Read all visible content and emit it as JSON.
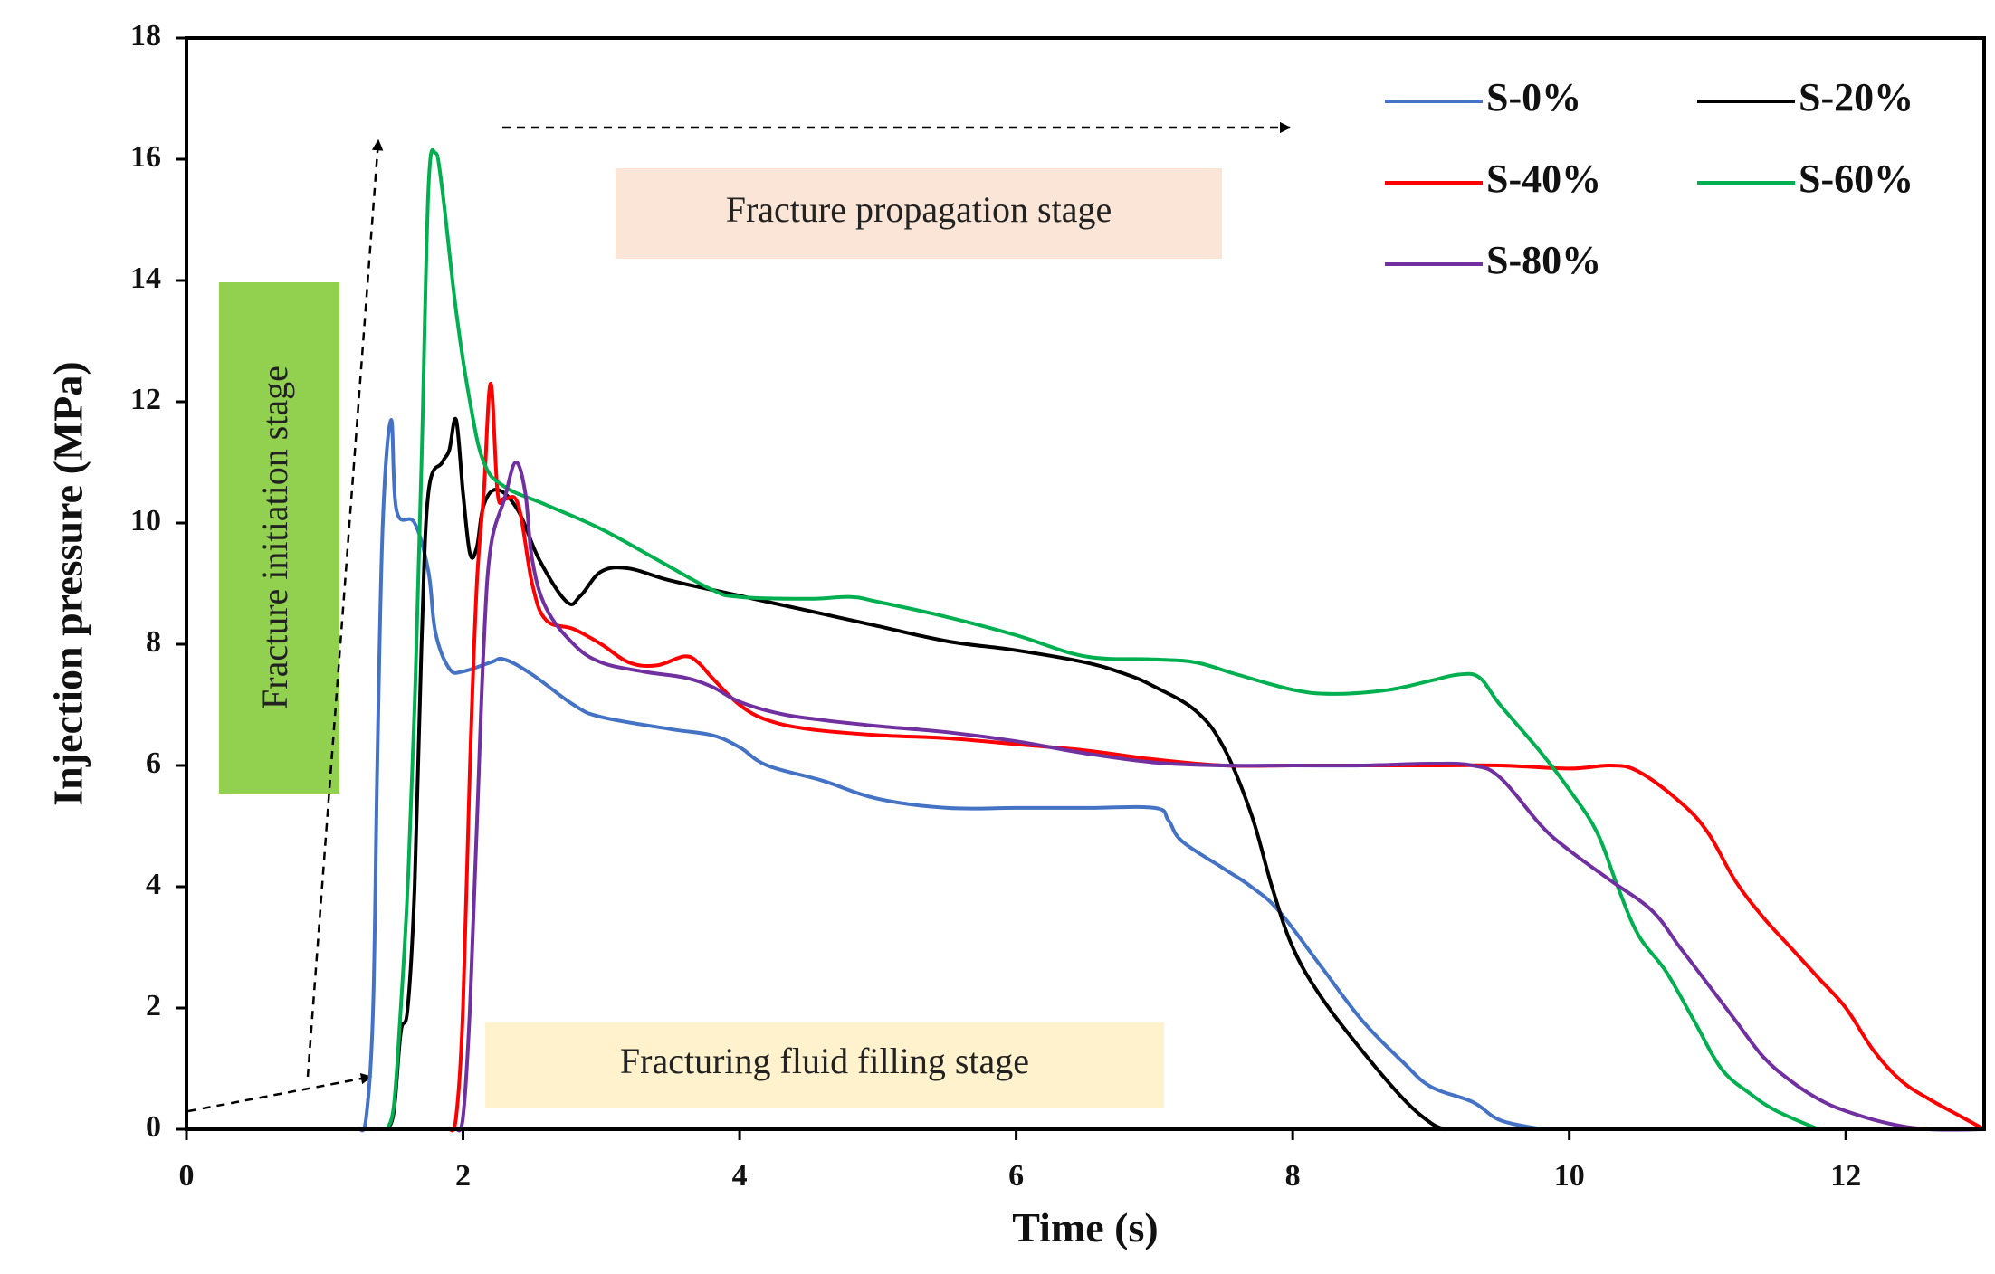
{
  "chart_data": {
    "type": "line",
    "xlabel": "Time (s)",
    "ylabel": "Injection pressure (MPa)",
    "xlim": [
      0,
      13
    ],
    "ylim": [
      0,
      18
    ],
    "xticks": [
      0,
      2,
      4,
      6,
      8,
      10,
      12
    ],
    "yticks": [
      0,
      2,
      4,
      6,
      8,
      10,
      12,
      14,
      16,
      18
    ],
    "grid": false,
    "legend_position": "top-right",
    "series": [
      {
        "name": "S-0%",
        "color": "#4472C4",
        "points": [
          [
            1.25,
            0
          ],
          [
            1.3,
            0.2
          ],
          [
            1.35,
            2
          ],
          [
            1.38,
            6
          ],
          [
            1.42,
            10
          ],
          [
            1.48,
            11.7
          ],
          [
            1.52,
            10.2
          ],
          [
            1.65,
            10
          ],
          [
            1.75,
            9.2
          ],
          [
            1.8,
            8.2
          ],
          [
            1.9,
            7.6
          ],
          [
            2.0,
            7.55
          ],
          [
            2.2,
            7.7
          ],
          [
            2.3,
            7.75
          ],
          [
            2.5,
            7.5
          ],
          [
            2.8,
            7.0
          ],
          [
            3.0,
            6.8
          ],
          [
            3.5,
            6.6
          ],
          [
            3.8,
            6.5
          ],
          [
            4.0,
            6.3
          ],
          [
            4.2,
            6.0
          ],
          [
            4.6,
            5.75
          ],
          [
            5.0,
            5.45
          ],
          [
            5.5,
            5.3
          ],
          [
            6.0,
            5.3
          ],
          [
            6.5,
            5.3
          ],
          [
            7.0,
            5.3
          ],
          [
            7.1,
            5.1
          ],
          [
            7.2,
            4.75
          ],
          [
            7.5,
            4.3
          ],
          [
            7.7,
            4.0
          ],
          [
            7.9,
            3.6
          ],
          [
            8.2,
            2.7
          ],
          [
            8.5,
            1.8
          ],
          [
            8.8,
            1.1
          ],
          [
            9.0,
            0.7
          ],
          [
            9.3,
            0.45
          ],
          [
            9.5,
            0.15
          ],
          [
            9.8,
            0
          ]
        ]
      },
      {
        "name": "S-20%",
        "color": "#000000",
        "points": [
          [
            1.45,
            0
          ],
          [
            1.5,
            0.3
          ],
          [
            1.55,
            1.6
          ],
          [
            1.6,
            2.0
          ],
          [
            1.65,
            4
          ],
          [
            1.7,
            8
          ],
          [
            1.75,
            10.5
          ],
          [
            1.85,
            11.0
          ],
          [
            1.9,
            11.2
          ],
          [
            1.95,
            11.7
          ],
          [
            2.0,
            10.5
          ],
          [
            2.05,
            9.5
          ],
          [
            2.1,
            9.6
          ],
          [
            2.15,
            10.3
          ],
          [
            2.25,
            10.55
          ],
          [
            2.4,
            10.2
          ],
          [
            2.55,
            9.4
          ],
          [
            2.75,
            8.7
          ],
          [
            2.85,
            8.8
          ],
          [
            3.0,
            9.2
          ],
          [
            3.2,
            9.25
          ],
          [
            3.5,
            9.05
          ],
          [
            4.0,
            8.8
          ],
          [
            4.5,
            8.55
          ],
          [
            5.0,
            8.3
          ],
          [
            5.5,
            8.05
          ],
          [
            6.0,
            7.9
          ],
          [
            6.5,
            7.7
          ],
          [
            6.8,
            7.5
          ],
          [
            7.0,
            7.3
          ],
          [
            7.3,
            6.9
          ],
          [
            7.5,
            6.3
          ],
          [
            7.7,
            5.2
          ],
          [
            7.85,
            4.0
          ],
          [
            8.0,
            3.0
          ],
          [
            8.2,
            2.2
          ],
          [
            8.5,
            1.3
          ],
          [
            8.8,
            0.5
          ],
          [
            9.0,
            0.1
          ],
          [
            9.1,
            0
          ]
        ]
      },
      {
        "name": "S-40%",
        "color": "#FF0000",
        "points": [
          [
            1.9,
            0
          ],
          [
            1.95,
            0.2
          ],
          [
            2.0,
            2
          ],
          [
            2.05,
            6
          ],
          [
            2.1,
            9
          ],
          [
            2.15,
            10.5
          ],
          [
            2.2,
            12.3
          ],
          [
            2.25,
            10.5
          ],
          [
            2.3,
            10.4
          ],
          [
            2.4,
            10.3
          ],
          [
            2.5,
            9.0
          ],
          [
            2.6,
            8.4
          ],
          [
            2.8,
            8.25
          ],
          [
            3.0,
            8.0
          ],
          [
            3.2,
            7.7
          ],
          [
            3.4,
            7.65
          ],
          [
            3.6,
            7.8
          ],
          [
            3.7,
            7.7
          ],
          [
            3.8,
            7.45
          ],
          [
            4.0,
            7.0
          ],
          [
            4.2,
            6.75
          ],
          [
            4.5,
            6.6
          ],
          [
            5.0,
            6.5
          ],
          [
            5.5,
            6.45
          ],
          [
            6.0,
            6.35
          ],
          [
            6.5,
            6.25
          ],
          [
            7.0,
            6.1
          ],
          [
            7.5,
            6.0
          ],
          [
            8.0,
            6.0
          ],
          [
            8.5,
            6.0
          ],
          [
            9.0,
            6.0
          ],
          [
            9.5,
            6.0
          ],
          [
            10.0,
            5.95
          ],
          [
            10.3,
            6.0
          ],
          [
            10.5,
            5.9
          ],
          [
            10.8,
            5.4
          ],
          [
            11.0,
            4.9
          ],
          [
            11.2,
            4.1
          ],
          [
            11.4,
            3.5
          ],
          [
            11.6,
            3.0
          ],
          [
            11.8,
            2.5
          ],
          [
            12.0,
            2.0
          ],
          [
            12.2,
            1.3
          ],
          [
            12.4,
            0.8
          ],
          [
            12.6,
            0.5
          ],
          [
            12.8,
            0.25
          ],
          [
            13.0,
            0
          ]
        ]
      },
      {
        "name": "S-60%",
        "color": "#00B050",
        "points": [
          [
            1.45,
            0
          ],
          [
            1.5,
            0.4
          ],
          [
            1.55,
            2
          ],
          [
            1.6,
            4
          ],
          [
            1.65,
            7
          ],
          [
            1.7,
            11
          ],
          [
            1.75,
            15.5
          ],
          [
            1.8,
            16.1
          ],
          [
            1.85,
            15.5
          ],
          [
            1.95,
            13.5
          ],
          [
            2.05,
            12.0
          ],
          [
            2.15,
            11.0
          ],
          [
            2.3,
            10.6
          ],
          [
            2.6,
            10.3
          ],
          [
            3.0,
            9.9
          ],
          [
            3.4,
            9.4
          ],
          [
            3.8,
            8.9
          ],
          [
            4.0,
            8.78
          ],
          [
            4.5,
            8.75
          ],
          [
            4.8,
            8.78
          ],
          [
            5.0,
            8.7
          ],
          [
            5.5,
            8.45
          ],
          [
            6.0,
            8.15
          ],
          [
            6.5,
            7.8
          ],
          [
            7.0,
            7.75
          ],
          [
            7.3,
            7.7
          ],
          [
            7.6,
            7.5
          ],
          [
            8.0,
            7.25
          ],
          [
            8.3,
            7.18
          ],
          [
            8.7,
            7.25
          ],
          [
            9.0,
            7.4
          ],
          [
            9.2,
            7.5
          ],
          [
            9.35,
            7.45
          ],
          [
            9.5,
            7.0
          ],
          [
            9.8,
            6.2
          ],
          [
            10.0,
            5.6
          ],
          [
            10.2,
            4.9
          ],
          [
            10.35,
            4.0
          ],
          [
            10.5,
            3.2
          ],
          [
            10.7,
            2.6
          ],
          [
            10.9,
            1.8
          ],
          [
            11.1,
            1.0
          ],
          [
            11.3,
            0.6
          ],
          [
            11.5,
            0.3
          ],
          [
            11.8,
            0
          ]
        ]
      },
      {
        "name": "S-80%",
        "color": "#7030A0",
        "points": [
          [
            1.95,
            0
          ],
          [
            2.0,
            0.2
          ],
          [
            2.05,
            2
          ],
          [
            2.1,
            5
          ],
          [
            2.15,
            8
          ],
          [
            2.2,
            9.6
          ],
          [
            2.3,
            10.4
          ],
          [
            2.38,
            11.0
          ],
          [
            2.45,
            10.5
          ],
          [
            2.5,
            9.4
          ],
          [
            2.6,
            8.6
          ],
          [
            2.8,
            8.0
          ],
          [
            3.0,
            7.7
          ],
          [
            3.3,
            7.55
          ],
          [
            3.6,
            7.45
          ],
          [
            3.8,
            7.3
          ],
          [
            4.0,
            7.05
          ],
          [
            4.3,
            6.85
          ],
          [
            4.6,
            6.75
          ],
          [
            5.0,
            6.65
          ],
          [
            5.5,
            6.55
          ],
          [
            6.0,
            6.4
          ],
          [
            6.5,
            6.2
          ],
          [
            7.0,
            6.05
          ],
          [
            7.5,
            6.0
          ],
          [
            8.0,
            6.0
          ],
          [
            8.5,
            6.0
          ],
          [
            9.0,
            6.03
          ],
          [
            9.3,
            6.0
          ],
          [
            9.5,
            5.8
          ],
          [
            9.8,
            5.0
          ],
          [
            10.0,
            4.6
          ],
          [
            10.3,
            4.1
          ],
          [
            10.6,
            3.6
          ],
          [
            10.8,
            3.0
          ],
          [
            11.0,
            2.4
          ],
          [
            11.2,
            1.8
          ],
          [
            11.4,
            1.2
          ],
          [
            11.6,
            0.8
          ],
          [
            11.8,
            0.5
          ],
          [
            12.0,
            0.3
          ],
          [
            12.3,
            0.1
          ],
          [
            12.6,
            0
          ],
          [
            13.0,
            0
          ]
        ]
      }
    ],
    "annotations": {
      "propagation": "Fracture propagation stage",
      "initiation": "Fracture initiation  stage",
      "filling": "Fracturing  fluid  filling  stage"
    }
  },
  "colors": {
    "propagation_box": "#FBE5D6",
    "initiation_box": "#92D050",
    "filling_box": "#FFF2CC"
  }
}
